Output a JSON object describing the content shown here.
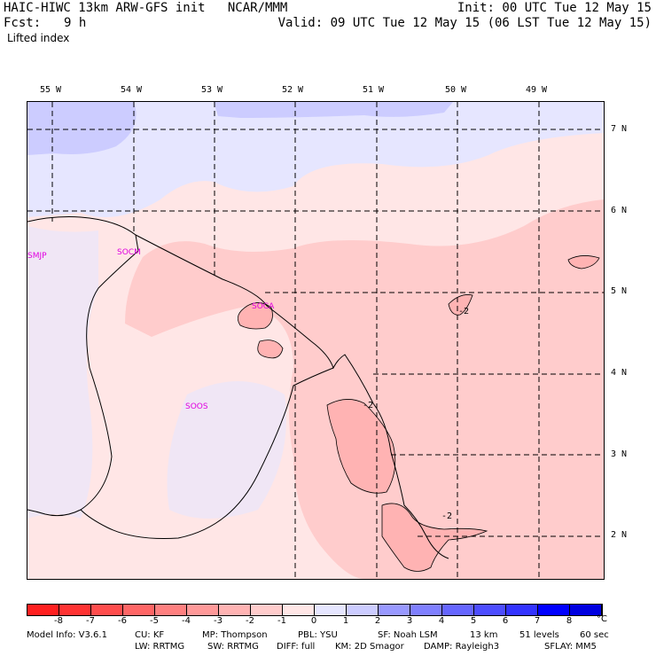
{
  "header": {
    "left_line1": "HAIC-HIWC 13km ARW-GFS init   NCAR/MMM",
    "left_line2_label": "Fcst:",
    "left_line2_value": "9 h",
    "field_name": "Lifted index",
    "right_line1": "Init: 00 UTC Tue 12 May 15",
    "right_line2": "Valid: 09 UTC Tue 12 May 15 (06 LST Tue 12 May 15)"
  },
  "longitude_labels": [
    "55 W",
    "54 W",
    "53 W",
    "52 W",
    "51 W",
    "50 W",
    "49 W"
  ],
  "latitude_labels": [
    "7 N",
    "6 N",
    "5 N",
    "4 N",
    "3 N",
    "2 N"
  ],
  "stations": [
    "SMJP",
    "SOCM",
    "SOCA",
    "SOOS"
  ],
  "contour_labels": [
    "-2",
    "-2",
    "-2"
  ],
  "legend": {
    "ticks": [
      "-8",
      "-7",
      "-6",
      "-5",
      "-4",
      "-3",
      "-2",
      "-1",
      "0",
      "1",
      "2",
      "3",
      "4",
      "5",
      "6",
      "7",
      "8"
    ],
    "unit": "°C",
    "colors": [
      "#ff2020",
      "#ff3333",
      "#ff4d4d",
      "#ff6666",
      "#ff8080",
      "#ff9999",
      "#ffb3b3",
      "#ffcccc",
      "#ffe6e6",
      "#e6e6ff",
      "#ccccff",
      "#9999ff",
      "#8080ff",
      "#6666ff",
      "#4d4dff",
      "#3333ff",
      "#0000ff",
      "#0000e0"
    ]
  },
  "footer": {
    "line1": [
      "Model Info: V3.6.1",
      "CU: KF",
      "MP: Thompson",
      "PBL: YSU",
      "SF: Noah LSM",
      "13 km",
      "51 levels",
      "60 sec"
    ],
    "line2": [
      "LW: RRTMG",
      "SW: RRTMG",
      "DIFF: full",
      "KM: 2D Smagor",
      "DAMP: Rayleigh3",
      "SFLAY: MM5"
    ]
  }
}
